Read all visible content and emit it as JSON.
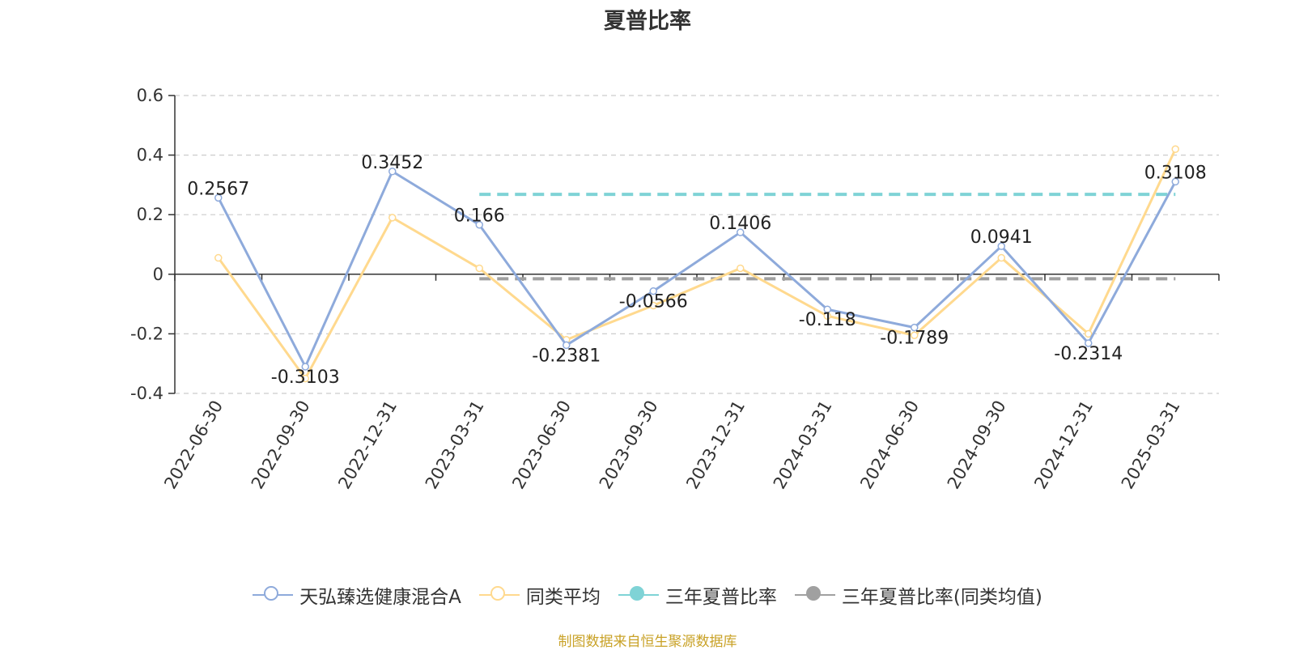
{
  "chart_data": {
    "type": "line",
    "title": "夏普比率",
    "categories": [
      "2022-06-30",
      "2022-09-30",
      "2022-12-31",
      "2023-03-31",
      "2023-06-30",
      "2023-09-30",
      "2023-12-31",
      "2024-03-31",
      "2024-06-30",
      "2024-09-30",
      "2024-12-31",
      "2025-03-31"
    ],
    "yticks": [
      "0.6",
      "0.4",
      "0.2",
      "0",
      "-0.2",
      "-0.4"
    ],
    "ylim": [
      -0.4,
      0.6
    ],
    "grid": true,
    "legend_position": "bottom",
    "series": [
      {
        "name": "天弘臻选健康混合A",
        "color": "#8eaadb",
        "values": [
          0.2567,
          -0.3103,
          0.3452,
          0.166,
          -0.2381,
          -0.0566,
          0.1406,
          -0.118,
          -0.1789,
          0.0941,
          -0.2314,
          0.3108
        ],
        "labels": [
          "0.2567",
          "-0.3103",
          "0.3452",
          "0.166",
          "-0.2381",
          "-0.0566",
          "0.1406",
          "-0.118",
          "-0.1789",
          "0.0941",
          "-0.2314",
          "0.3108"
        ]
      },
      {
        "name": "同类平均",
        "color": "#ffd98e",
        "values": [
          0.055,
          -0.35,
          0.19,
          0.02,
          -0.22,
          -0.105,
          0.02,
          -0.14,
          -0.205,
          0.055,
          -0.2,
          0.42
        ]
      },
      {
        "name": "三年夏普比率",
        "color": "#7fd3d6",
        "style": "dashed",
        "start": "2023-03-31",
        "end": "2025-03-31",
        "value": 0.268
      },
      {
        "name": "三年夏普比率(同类均值)",
        "color": "#a0a0a0",
        "style": "dashed",
        "start": "2023-03-31",
        "end": "2025-03-31",
        "value": -0.015
      }
    ]
  },
  "source_note": "制图数据来自恒生聚源数据库"
}
